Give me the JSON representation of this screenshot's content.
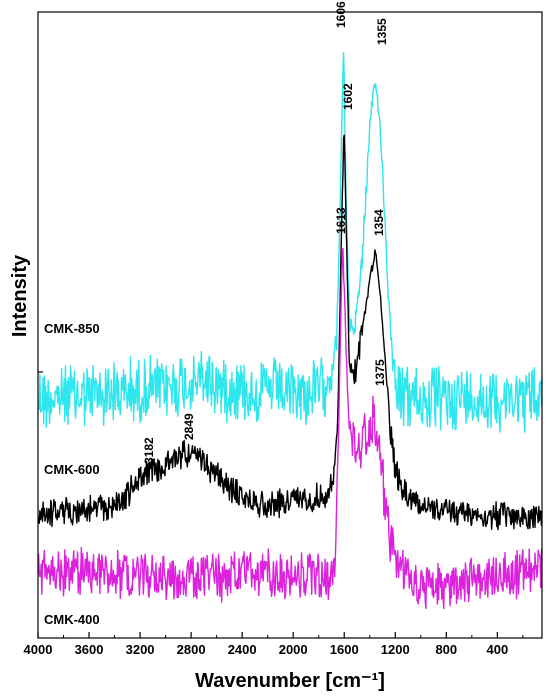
{
  "chart_data": {
    "type": "line",
    "title": "",
    "xlabel": "Wavenumber [cm⁻¹]",
    "ylabel": "Intensity",
    "xlim": [
      4000,
      50
    ],
    "x_reversed": true,
    "x_ticks": [
      4000,
      3600,
      3200,
      2800,
      2400,
      2000,
      1600,
      1200,
      800,
      400
    ],
    "y_ticks_labeled": false,
    "grid": false,
    "series": [
      {
        "name": "CMK-850",
        "color": "#2ee6ee",
        "noise": 38,
        "points": [
          [
            4000,
            398
          ],
          [
            3600,
            395
          ],
          [
            3200,
            390
          ],
          [
            2900,
            385
          ],
          [
            2700,
            380
          ],
          [
            2400,
            390
          ],
          [
            2100,
            392
          ],
          [
            1900,
            395
          ],
          [
            1780,
            388
          ],
          [
            1700,
            370
          ],
          [
            1660,
            340
          ],
          [
            1630,
            200
          ],
          [
            1606,
            40
          ],
          [
            1585,
            200
          ],
          [
            1560,
            320
          ],
          [
            1520,
            330
          ],
          [
            1460,
            260
          ],
          [
            1400,
            130
          ],
          [
            1355,
            80
          ],
          [
            1310,
            140
          ],
          [
            1260,
            280
          ],
          [
            1220,
            360
          ],
          [
            1160,
            395
          ],
          [
            1000,
            400
          ],
          [
            700,
            398
          ],
          [
            400,
            398
          ],
          [
            50,
            398
          ]
        ]
      },
      {
        "name": "CMK-600",
        "color": "#000000",
        "noise": 16,
        "points": [
          [
            4000,
            513
          ],
          [
            3600,
            510
          ],
          [
            3400,
            505
          ],
          [
            3300,
            495
          ],
          [
            3182,
            475
          ],
          [
            3050,
            470
          ],
          [
            2849,
            452
          ],
          [
            2700,
            462
          ],
          [
            2550,
            482
          ],
          [
            2400,
            498
          ],
          [
            2200,
            505
          ],
          [
            2000,
            500
          ],
          [
            1850,
            498
          ],
          [
            1720,
            495
          ],
          [
            1680,
            470
          ],
          [
            1650,
            420
          ],
          [
            1625,
            250
          ],
          [
            1602,
            125
          ],
          [
            1580,
            250
          ],
          [
            1560,
            365
          ],
          [
            1520,
            375
          ],
          [
            1460,
            330
          ],
          [
            1400,
            280
          ],
          [
            1354,
            250
          ],
          [
            1320,
            290
          ],
          [
            1280,
            360
          ],
          [
            1240,
            430
          ],
          [
            1200,
            470
          ],
          [
            1100,
            498
          ],
          [
            900,
            510
          ],
          [
            500,
            516
          ],
          [
            50,
            518
          ]
        ]
      },
      {
        "name": "CMK-400",
        "color": "#dd22dd",
        "noise": 28,
        "points": [
          [
            4000,
            575
          ],
          [
            3600,
            570
          ],
          [
            3200,
            575
          ],
          [
            2800,
            578
          ],
          [
            2400,
            575
          ],
          [
            2000,
            575
          ],
          [
            1780,
            578
          ],
          [
            1700,
            578
          ],
          [
            1670,
            560
          ],
          [
            1645,
            430
          ],
          [
            1613,
            240
          ],
          [
            1590,
            330
          ],
          [
            1565,
            420
          ],
          [
            1520,
            445
          ],
          [
            1460,
            440
          ],
          [
            1400,
            430
          ],
          [
            1375,
            420
          ],
          [
            1330,
            440
          ],
          [
            1290,
            490
          ],
          [
            1240,
            540
          ],
          [
            1180,
            565
          ],
          [
            1050,
            585
          ],
          [
            900,
            590
          ],
          [
            600,
            578
          ],
          [
            300,
            575
          ],
          [
            50,
            570
          ]
        ]
      }
    ],
    "peak_labels": [
      {
        "text": "1606",
        "x": 1606,
        "series": 0
      },
      {
        "text": "1355",
        "x": 1355,
        "series": 0
      },
      {
        "text": "1602",
        "x": 1602,
        "series": 1
      },
      {
        "text": "1354",
        "x": 1354,
        "series": 1
      },
      {
        "text": "3182",
        "x": 3182,
        "series": 1
      },
      {
        "text": "2849",
        "x": 2849,
        "series": 1
      },
      {
        "text": "1613",
        "x": 1613,
        "series": 2
      },
      {
        "text": "1375",
        "x": 1375,
        "series": 2
      }
    ]
  }
}
